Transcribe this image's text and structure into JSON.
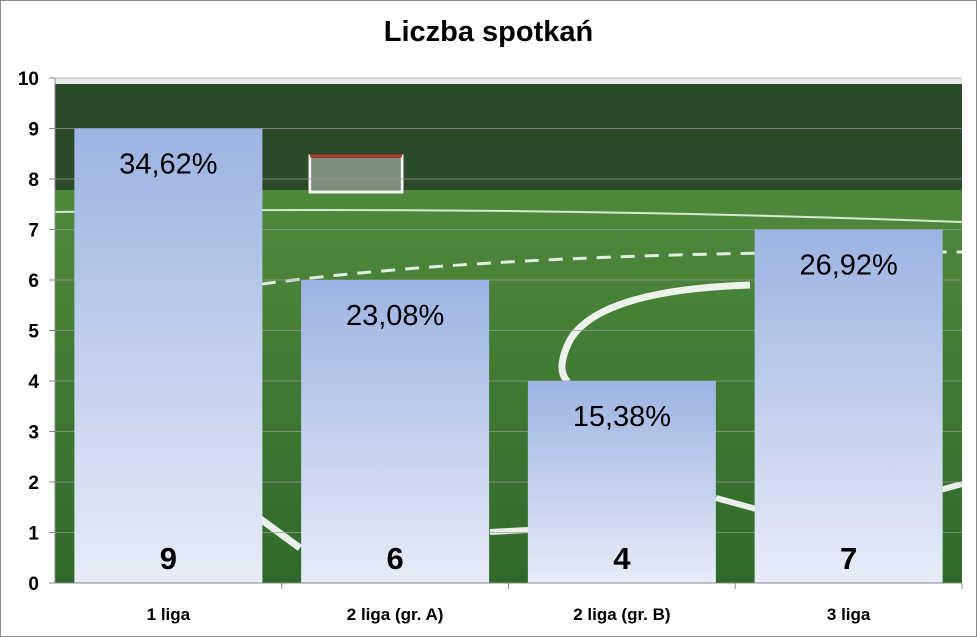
{
  "chart_data": {
    "type": "bar",
    "title": "Liczba spotkań",
    "categories": [
      "1 liga",
      "2 liga (gr. A)",
      "2 liga (gr. B)",
      "3 liga"
    ],
    "values": [
      9,
      6,
      4,
      7
    ],
    "percent_labels": [
      "34,62%",
      "23,08%",
      "15,38%",
      "26,92%"
    ],
    "ylim": [
      0,
      10
    ],
    "yticks": [
      "0",
      "1",
      "2",
      "3",
      "4",
      "5",
      "6",
      "7",
      "8",
      "9",
      "10"
    ],
    "grid": true,
    "legend": "none",
    "plot_background": "photo of a football pitch",
    "colors": {
      "bar_top": "#9db3e3",
      "bar_bottom": "#e7ecf7",
      "grass_light": "#4f8a3c",
      "grass_dark": "#2f6a2a",
      "trees": "#2c4a2a",
      "sky": "#e6ece8"
    }
  }
}
